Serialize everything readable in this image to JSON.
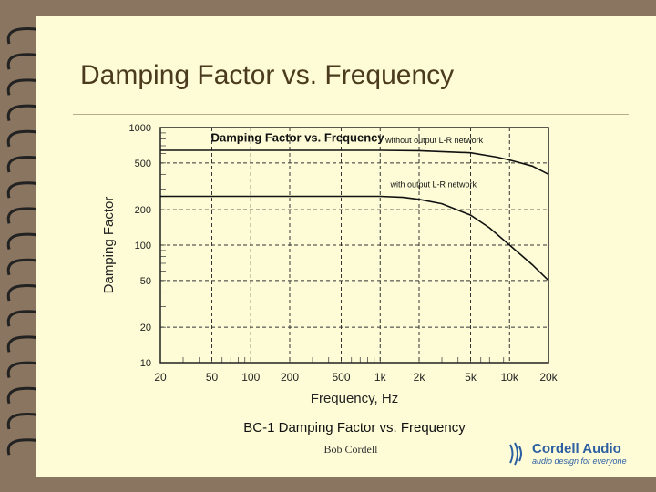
{
  "slide": {
    "title": "Damping Factor vs. Frequency",
    "footer": "Bob Cordell",
    "logo": {
      "name": "Cordell Audio",
      "tagline": "audio design for everyone"
    }
  },
  "colors": {
    "background": "#8a7560",
    "slide": "#fdfcd6",
    "title": "#4a3a1e",
    "logo": "#2d5fa3"
  },
  "chart_data": {
    "type": "line",
    "title": "Damping Factor vs. Frequency",
    "caption": "BC-1 Damping Factor vs. Frequency",
    "xlabel": "Frequency, Hz",
    "ylabel": "Damping Factor",
    "xscale": "log",
    "yscale": "log",
    "xlim": [
      20,
      20000
    ],
    "ylim": [
      10,
      1000
    ],
    "grid": "dashed at labeled ticks",
    "x_ticks": [
      {
        "value": 20,
        "label": "20"
      },
      {
        "value": 50,
        "label": "50"
      },
      {
        "value": 100,
        "label": "100"
      },
      {
        "value": 200,
        "label": "200"
      },
      {
        "value": 500,
        "label": "500"
      },
      {
        "value": 1000,
        "label": "1k"
      },
      {
        "value": 2000,
        "label": "2k"
      },
      {
        "value": 5000,
        "label": "5k"
      },
      {
        "value": 10000,
        "label": "10k"
      },
      {
        "value": 20000,
        "label": "20k"
      }
    ],
    "y_ticks": [
      {
        "value": 10,
        "label": "10"
      },
      {
        "value": 20,
        "label": "20"
      },
      {
        "value": 50,
        "label": "50"
      },
      {
        "value": 100,
        "label": "100"
      },
      {
        "value": 200,
        "label": "200"
      },
      {
        "value": 500,
        "label": "500"
      },
      {
        "value": 1000,
        "label": "1000"
      }
    ],
    "series": [
      {
        "name": "without output L-R network",
        "x": [
          20,
          1000,
          2000,
          5000,
          8000,
          10000,
          15000,
          20000
        ],
        "y": [
          640,
          640,
          635,
          610,
          560,
          530,
          470,
          400
        ]
      },
      {
        "name": "with output L-R network",
        "x": [
          20,
          1000,
          1500,
          2000,
          3000,
          5000,
          7000,
          10000,
          15000,
          20000
        ],
        "y": [
          260,
          260,
          255,
          245,
          225,
          180,
          140,
          100,
          68,
          50
        ]
      }
    ]
  }
}
